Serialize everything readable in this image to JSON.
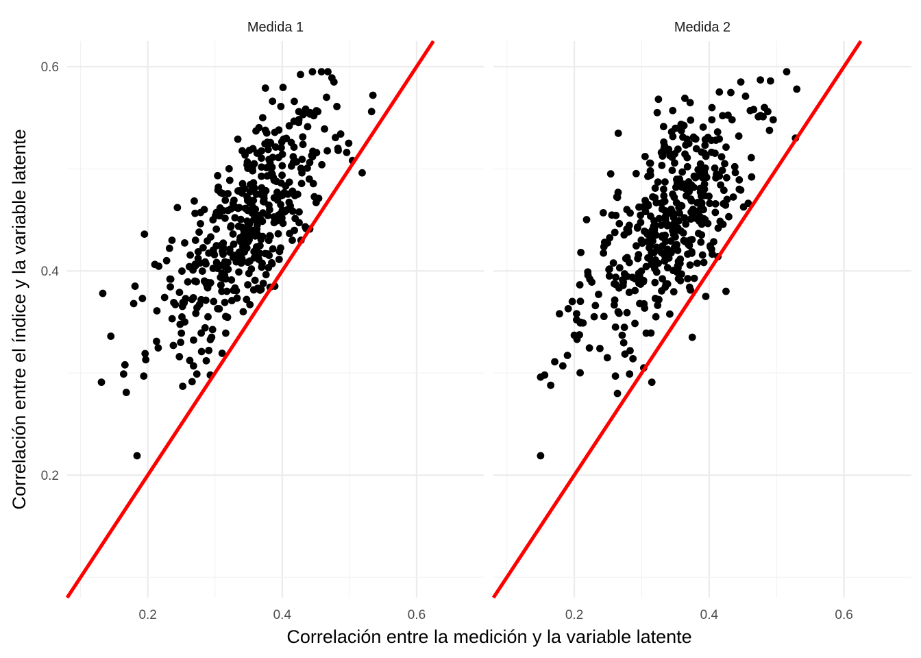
{
  "chart_data": {
    "type": "scatter",
    "xlabel": "Correlación entre la medición y la variable latente",
    "ylabel": "Correlación entre el índice y la variable latente",
    "x_ticks": [
      "0.2",
      "0.4",
      "0.6"
    ],
    "y_ticks": [
      "0.2",
      "0.4",
      "0.6"
    ],
    "xlim": [
      0.08,
      0.7
    ],
    "ylim": [
      0.08,
      0.625
    ],
    "grid": true,
    "reference_line": {
      "slope": 1,
      "intercept": 0,
      "color": "#ff0000"
    },
    "point_color": "#000000",
    "facets": [
      {
        "title": "Medida 1",
        "n_points_shown": 450,
        "points": [
          [
            0.131,
            0.291
          ],
          [
            0.133,
            0.378
          ],
          [
            0.145,
            0.336
          ],
          [
            0.164,
            0.299
          ],
          [
            0.166,
            0.308
          ],
          [
            0.168,
            0.281
          ],
          [
            0.179,
            0.368
          ],
          [
            0.181,
            0.385
          ],
          [
            0.184,
            0.219
          ],
          [
            0.192,
            0.373
          ],
          [
            0.194,
            0.297
          ],
          [
            0.195,
            0.436
          ],
          [
            0.196,
            0.319
          ],
          [
            0.197,
            0.313
          ],
          [
            0.213,
            0.331
          ],
          [
            0.225,
            0.374
          ],
          [
            0.228,
            0.41
          ],
          [
            0.233,
            0.392
          ],
          [
            0.236,
            0.43
          ],
          [
            0.238,
            0.327
          ],
          [
            0.241,
            0.367
          ],
          [
            0.244,
            0.462
          ],
          [
            0.247,
            0.316
          ],
          [
            0.25,
            0.339
          ],
          [
            0.252,
            0.287
          ],
          [
            0.255,
            0.35
          ],
          [
            0.268,
            0.307
          ],
          [
            0.271,
            0.43
          ],
          [
            0.273,
            0.299
          ],
          [
            0.28,
            0.321
          ],
          [
            0.284,
            0.46
          ],
          [
            0.287,
            0.312
          ],
          [
            0.293,
            0.298
          ],
          [
            0.295,
            0.335
          ],
          [
            0.297,
            0.45
          ],
          [
            0.298,
            0.37
          ],
          [
            0.305,
            0.482
          ],
          [
            0.312,
            0.459
          ],
          [
            0.321,
            0.5
          ],
          [
            0.327,
            0.466
          ],
          [
            0.334,
            0.529
          ],
          [
            0.342,
            0.36
          ],
          [
            0.347,
            0.372
          ],
          [
            0.351,
            0.436
          ],
          [
            0.352,
            0.367
          ],
          [
            0.356,
            0.498
          ],
          [
            0.361,
            0.537
          ],
          [
            0.371,
            0.55
          ],
          [
            0.375,
            0.579
          ],
          [
            0.377,
            0.535
          ],
          [
            0.382,
            0.384
          ],
          [
            0.385,
            0.407
          ],
          [
            0.389,
            0.385
          ],
          [
            0.395,
            0.538
          ],
          [
            0.398,
            0.561
          ],
          [
            0.402,
            0.529
          ],
          [
            0.418,
            0.566
          ],
          [
            0.428,
            0.43
          ],
          [
            0.441,
            0.441
          ],
          [
            0.444,
            0.513
          ],
          [
            0.445,
            0.595
          ],
          [
            0.447,
            0.552
          ],
          [
            0.453,
            0.556
          ],
          [
            0.459,
            0.504
          ],
          [
            0.463,
            0.539
          ],
          [
            0.466,
            0.57
          ],
          [
            0.468,
            0.595
          ],
          [
            0.474,
            0.589
          ],
          [
            0.477,
            0.585
          ],
          [
            0.483,
            0.52
          ],
          [
            0.487,
            0.534
          ],
          [
            0.496,
            0.516
          ],
          [
            0.499,
            0.525
          ],
          [
            0.519,
            0.496
          ],
          [
            0.533,
            0.556
          ],
          [
            0.535,
            0.572
          ],
          [
            0.415,
            0.43
          ],
          [
            0.423,
            0.475
          ],
          [
            0.39,
            0.45
          ],
          [
            0.361,
            0.42
          ]
        ]
      },
      {
        "title": "Medida 2",
        "n_points_shown": 450,
        "points": [
          [
            0.15,
            0.219
          ],
          [
            0.15,
            0.296
          ],
          [
            0.156,
            0.298
          ],
          [
            0.165,
            0.288
          ],
          [
            0.171,
            0.311
          ],
          [
            0.178,
            0.358
          ],
          [
            0.183,
            0.307
          ],
          [
            0.191,
            0.363
          ],
          [
            0.197,
            0.37
          ],
          [
            0.2,
            0.337
          ],
          [
            0.204,
            0.333
          ],
          [
            0.209,
            0.349
          ],
          [
            0.213,
            0.349
          ],
          [
            0.22,
            0.399
          ],
          [
            0.223,
            0.392
          ],
          [
            0.226,
            0.389
          ],
          [
            0.236,
            0.377
          ],
          [
            0.238,
            0.324
          ],
          [
            0.245,
            0.428
          ],
          [
            0.249,
            0.315
          ],
          [
            0.254,
            0.495
          ],
          [
            0.261,
            0.297
          ],
          [
            0.264,
            0.28
          ],
          [
            0.264,
            0.472
          ],
          [
            0.271,
            0.337
          ],
          [
            0.278,
            0.46
          ],
          [
            0.282,
            0.299
          ],
          [
            0.287,
            0.314
          ],
          [
            0.297,
            0.368
          ],
          [
            0.303,
            0.305
          ],
          [
            0.305,
            0.512
          ],
          [
            0.315,
            0.291
          ],
          [
            0.32,
            0.481
          ],
          [
            0.323,
            0.555
          ],
          [
            0.34,
            0.519
          ],
          [
            0.346,
            0.557
          ],
          [
            0.358,
            0.464
          ],
          [
            0.361,
            0.531
          ],
          [
            0.364,
            0.569
          ],
          [
            0.367,
            0.529
          ],
          [
            0.371,
            0.384
          ],
          [
            0.375,
            0.335
          ],
          [
            0.383,
            0.467
          ],
          [
            0.388,
            0.494
          ],
          [
            0.395,
            0.375
          ],
          [
            0.404,
            0.548
          ],
          [
            0.41,
            0.528
          ],
          [
            0.413,
            0.414
          ],
          [
            0.42,
            0.552
          ],
          [
            0.425,
            0.38
          ],
          [
            0.434,
            0.548
          ],
          [
            0.444,
            0.532
          ],
          [
            0.447,
            0.585
          ],
          [
            0.454,
            0.571
          ],
          [
            0.461,
            0.557
          ],
          [
            0.466,
            0.558
          ],
          [
            0.473,
            0.551
          ],
          [
            0.476,
            0.587
          ],
          [
            0.48,
            0.551
          ],
          [
            0.482,
            0.56
          ],
          [
            0.487,
            0.556
          ],
          [
            0.491,
            0.586
          ],
          [
            0.495,
            0.548
          ],
          [
            0.515,
            0.595
          ],
          [
            0.528,
            0.53
          ],
          [
            0.53,
            0.578
          ],
          [
            0.463,
            0.492
          ],
          [
            0.438,
            0.502
          ],
          [
            0.393,
            0.48
          ],
          [
            0.352,
            0.44
          ]
        ]
      }
    ]
  }
}
